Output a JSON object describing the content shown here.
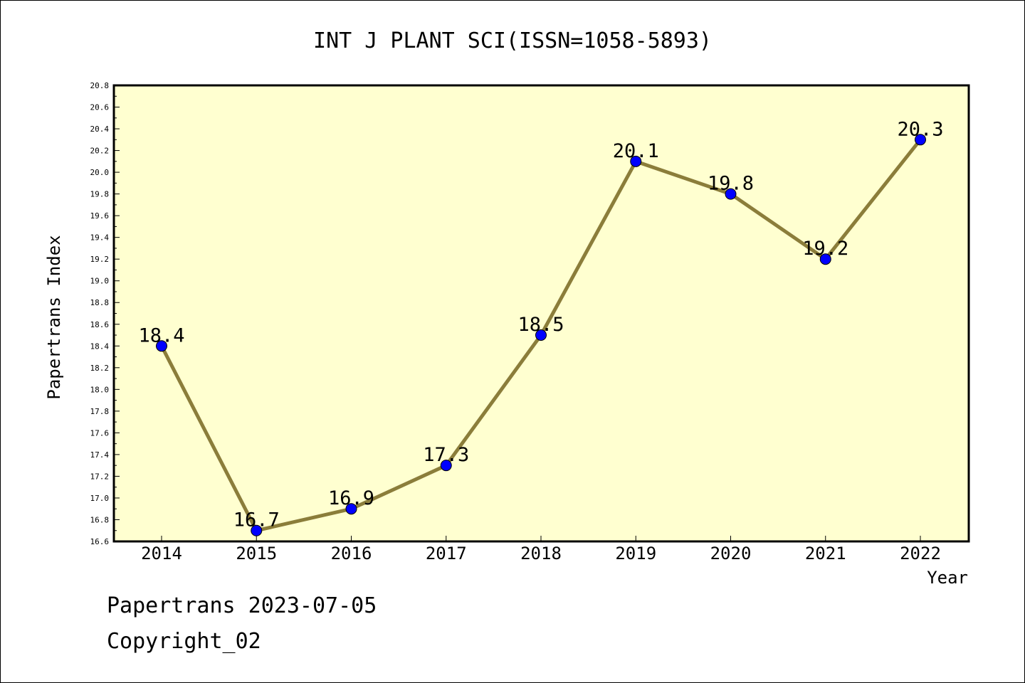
{
  "chart_data": {
    "type": "line",
    "title": "INT J PLANT SCI(ISSN=1058-5893)",
    "xlabel": "Year",
    "ylabel": "Papertrans Index",
    "categories": [
      "2014",
      "2015",
      "2016",
      "2017",
      "2018",
      "2019",
      "2020",
      "2021",
      "2022"
    ],
    "values": [
      18.4,
      16.7,
      16.9,
      17.3,
      18.5,
      20.1,
      19.8,
      19.2,
      20.3
    ],
    "data_labels": [
      "18.4",
      "16.7",
      "16.9",
      "17.3",
      "18.5",
      "20.1",
      "19.8",
      "19.2",
      "20.3"
    ],
    "ylim": [
      16.6,
      20.8
    ],
    "yticks": [
      "16.6",
      "16.8",
      "17.0",
      "17.2",
      "17.4",
      "17.6",
      "17.8",
      "18.0",
      "18.2",
      "18.4",
      "18.6",
      "18.8",
      "19.0",
      "19.2",
      "19.4",
      "19.6",
      "19.8",
      "20.0",
      "20.2",
      "20.4",
      "20.6",
      "20.8"
    ],
    "grid": false,
    "legend": "none",
    "colors": {
      "line": "#8B7D3A",
      "marker": "#0000FF",
      "plot_background": "#FFFFD0"
    }
  },
  "footer": {
    "line1": "Papertrans 2023-07-05",
    "line2": "Copyright_02"
  }
}
